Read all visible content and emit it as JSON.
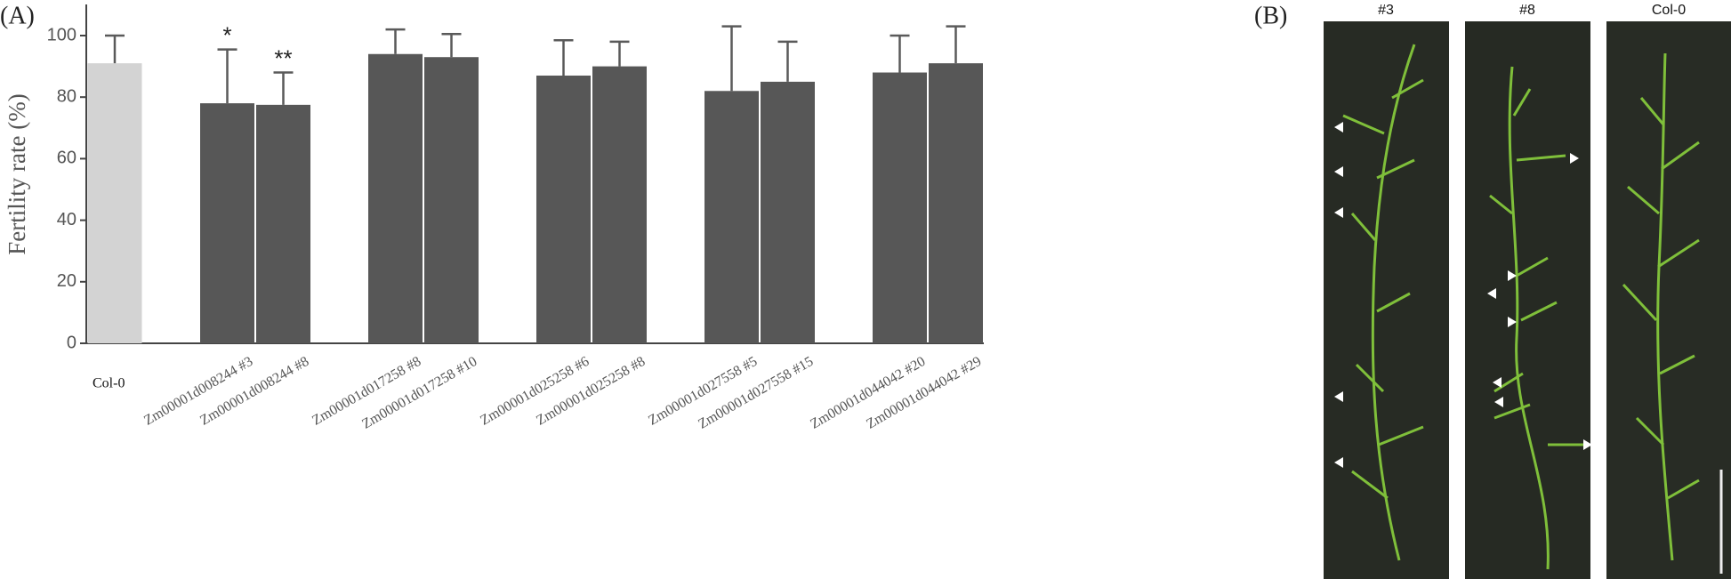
{
  "chart_data": {
    "type": "bar",
    "panel_label": "(A)",
    "y_label": "Fertility rate (%)",
    "categories": [
      "Col-0",
      "Zm00001d008244 #3",
      "Zm00001d008244 #8",
      "Zm00001d017258 #8",
      "Zm00001d017258 #10",
      "Zm00001d025258 #6",
      "Zm00001d025258 #8",
      "Zm00001d027558 #5",
      "Zm00001d027558 #15",
      "Zm00001d044042 #20",
      "Zm00001d044042 #29"
    ],
    "values": [
      91,
      78,
      77.5,
      94,
      93,
      87,
      90,
      82,
      85,
      88,
      91
    ],
    "errors": [
      9,
      17.5,
      10.5,
      8,
      7.5,
      11.5,
      8,
      21,
      13,
      12,
      12
    ],
    "annotations": [
      null,
      "*",
      "**",
      null,
      null,
      null,
      null,
      null,
      null,
      null,
      null
    ],
    "colors": [
      "#d3d3d3",
      "#575757",
      "#575757",
      "#575757",
      "#575757",
      "#575757",
      "#575757",
      "#575757",
      "#575757",
      "#575757",
      "#575757"
    ],
    "ylim": [
      0,
      110
    ],
    "yticks": [
      0,
      20,
      40,
      60,
      80,
      100
    ],
    "grid": false
  },
  "photo_panel": {
    "label": "(B)",
    "titles": [
      "#3",
      "#8",
      "Col-0"
    ]
  }
}
